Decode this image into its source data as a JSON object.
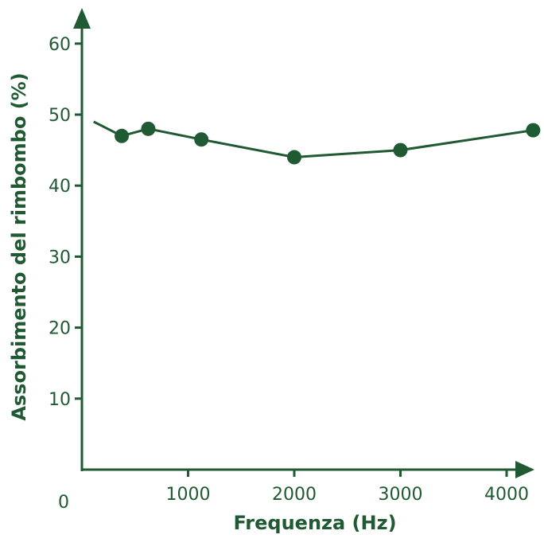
{
  "chart_data": {
    "type": "line",
    "title": "",
    "xlabel": "Frequenza (Hz)",
    "ylabel": "Assorbimento del rimbombo (%)",
    "xlim": [
      0,
      4300
    ],
    "ylim": [
      0,
      60
    ],
    "x_ticks": [
      0,
      1000,
      2000,
      3000,
      4000
    ],
    "y_ticks": [
      10,
      20,
      30,
      40,
      50,
      60
    ],
    "line_start": {
      "x": 110,
      "y": 49
    },
    "series": [
      {
        "x": [
          375,
          625,
          1125,
          2000,
          3000,
          4250
        ],
        "y": [
          47,
          48,
          46.5,
          44,
          45,
          47.8
        ]
      }
    ],
    "grid": false,
    "legend": "none",
    "color": "#1f5a32"
  }
}
